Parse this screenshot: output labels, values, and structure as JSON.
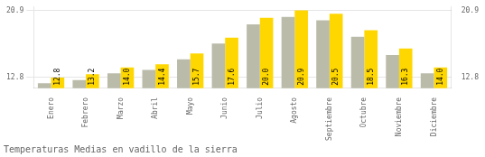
{
  "chart_data": {
    "type": "bar",
    "title": "Temperaturas Medias en vadillo de la sierra",
    "categories": [
      "Enero",
      "Febrero",
      "Marzo",
      "Abril",
      "Mayo",
      "Junio",
      "Julio",
      "Agosto",
      "Septiembre",
      "Octubre",
      "Noviembre",
      "Diciembre"
    ],
    "series": [
      {
        "color": "#BBBBAA",
        "values": [
          12.1,
          12.5,
          13.3,
          13.7,
          15.0,
          16.9,
          19.2,
          20.1,
          19.7,
          17.7,
          15.5,
          13.3
        ]
      },
      {
        "color": "#FFD700",
        "values": [
          12.8,
          13.2,
          14.0,
          14.4,
          15.7,
          17.6,
          20.0,
          20.9,
          20.5,
          18.5,
          16.3,
          14.0
        ],
        "data_labels": true,
        "value_labels": [
          "12.8",
          "13.2",
          "14.0",
          "14.4",
          "15.7",
          "17.6",
          "20.0",
          "20.9",
          "20.5",
          "18.5",
          "16.3",
          "14.0"
        ]
      }
    ],
    "ylim": [
      11.5,
      21.3
    ],
    "yticks": [
      12.8,
      20.9
    ],
    "y2lim": [
      11.5,
      21.3
    ],
    "y2ticks": [
      12.8,
      20.9
    ],
    "grid": true
  }
}
